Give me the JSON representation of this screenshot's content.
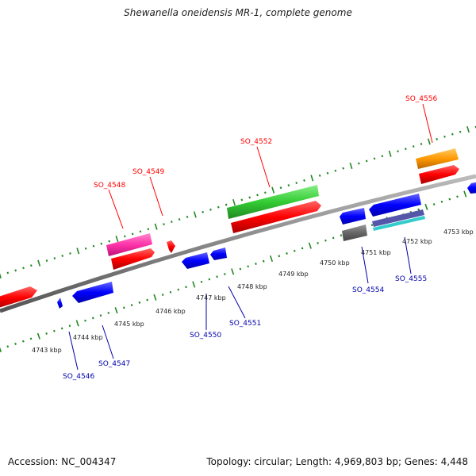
{
  "title": "Shewanella oneidensis MR-1, complete genome",
  "footer": {
    "accession": "Accession: NC_004347",
    "topology": "Topology: circular; Length: 4,969,803 bp; Genes: 4,448"
  },
  "scale_labels": [
    "4743 kbp",
    "4744 kbp",
    "4745 kbp",
    "4746 kbp",
    "4747 kbp",
    "4748 kbp",
    "4749 kbp",
    "4750 kbp",
    "4751 kbp",
    "4752 kbp",
    "4753 kbp"
  ],
  "genes_top": [
    {
      "id": "SO_4548",
      "color": "#ff0000"
    },
    {
      "id": "SO_4549",
      "color": "#ff0000"
    },
    {
      "id": "SO_4552",
      "color": "#ff0000"
    },
    {
      "id": "SO_4556",
      "color": "#ff0000"
    }
  ],
  "genes_bottom": [
    {
      "id": "SO_4546",
      "color": "#0000cc"
    },
    {
      "id": "SO_4547",
      "color": "#0000cc"
    },
    {
      "id": "SO_4550",
      "color": "#0000cc"
    },
    {
      "id": "SO_4551",
      "color": "#0000cc"
    },
    {
      "id": "SO_4554",
      "color": "#0000cc"
    },
    {
      "id": "SO_4555",
      "color": "#0000cc"
    }
  ],
  "colors": {
    "backbone": "#8a8a8a",
    "tick": "#228822",
    "forward": "#ff0000",
    "reverse": "#0000ff",
    "green": "#33cc33",
    "pink": "#ff33aa",
    "orange": "#ff9900",
    "gray": "#666666",
    "cyan": "#33cccc"
  }
}
